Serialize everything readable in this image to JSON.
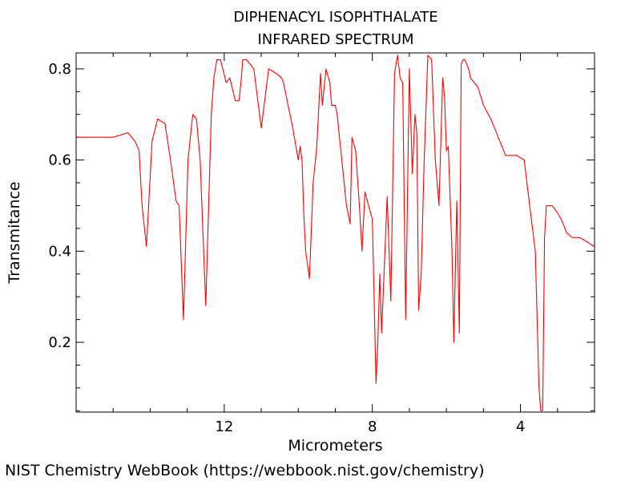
{
  "chart_data": {
    "type": "line",
    "title": "DIPHENACYL ISOPHTHALATE",
    "subtitle": "INFRARED SPECTRUM",
    "xlabel": "Micrometers",
    "ylabel": "Transmitance",
    "xlim": [
      16.0,
      2.0
    ],
    "ylim": [
      0.047,
      0.835
    ],
    "x_direction": "reversed",
    "xticks": [
      12,
      8,
      4
    ],
    "xtick_labels": [
      "12",
      "8",
      "4"
    ],
    "yticks": [
      0.2,
      0.4,
      0.6,
      0.8
    ],
    "ytick_labels": [
      "0.2",
      "0.4",
      "0.6",
      "0.8"
    ],
    "grid": false,
    "series": [
      {
        "color": "#ff0000",
        "x": [
          16.0,
          15.5,
          15.0,
          14.6,
          14.4,
          14.3,
          14.22,
          14.1,
          13.95,
          13.8,
          13.6,
          13.45,
          13.3,
          13.22,
          13.1,
          12.98,
          12.85,
          12.75,
          12.65,
          12.5,
          12.35,
          12.28,
          12.2,
          12.1,
          11.95,
          11.85,
          11.7,
          11.6,
          11.55,
          11.5,
          11.4,
          11.2,
          11.0,
          10.8,
          10.6,
          10.45,
          10.4,
          10.3,
          10.15,
          10.0,
          9.95,
          9.9,
          9.85,
          9.8,
          9.7,
          9.6,
          9.5,
          9.4,
          9.35,
          9.25,
          9.15,
          9.1,
          9.05,
          9.0,
          8.95,
          8.85,
          8.7,
          8.6,
          8.55,
          8.45,
          8.35,
          8.28,
          8.2,
          8.1,
          8.0,
          7.9,
          7.85,
          7.8,
          7.75,
          7.7,
          7.6,
          7.5,
          7.4,
          7.32,
          7.25,
          7.18,
          7.1,
          7.0,
          6.92,
          6.85,
          6.8,
          6.75,
          6.68,
          6.6,
          6.5,
          6.4,
          6.3,
          6.2,
          6.1,
          6.05,
          6.0,
          5.95,
          5.85,
          5.8,
          5.72,
          5.65,
          5.6,
          5.55,
          5.5,
          5.4,
          5.35,
          5.25,
          5.15,
          5.0,
          4.8,
          4.6,
          4.4,
          4.1,
          3.9,
          3.75,
          3.6,
          3.5,
          3.45,
          3.4,
          3.35,
          3.3,
          3.22,
          3.15,
          3.05,
          2.9,
          2.75,
          2.6,
          2.4,
          2.2,
          2.0
        ],
        "y": [
          0.65,
          0.65,
          0.65,
          0.66,
          0.64,
          0.62,
          0.5,
          0.41,
          0.64,
          0.69,
          0.68,
          0.6,
          0.51,
          0.5,
          0.25,
          0.6,
          0.7,
          0.69,
          0.6,
          0.28,
          0.7,
          0.78,
          0.82,
          0.82,
          0.77,
          0.78,
          0.73,
          0.73,
          0.77,
          0.82,
          0.82,
          0.8,
          0.67,
          0.8,
          0.79,
          0.78,
          0.77,
          0.73,
          0.67,
          0.6,
          0.63,
          0.6,
          0.48,
          0.4,
          0.34,
          0.55,
          0.63,
          0.79,
          0.72,
          0.8,
          0.77,
          0.72,
          0.72,
          0.72,
          0.7,
          0.62,
          0.5,
          0.46,
          0.65,
          0.62,
          0.5,
          0.4,
          0.53,
          0.5,
          0.47,
          0.11,
          0.2,
          0.35,
          0.22,
          0.32,
          0.52,
          0.29,
          0.79,
          0.83,
          0.78,
          0.77,
          0.25,
          0.8,
          0.57,
          0.7,
          0.66,
          0.27,
          0.35,
          0.6,
          0.83,
          0.82,
          0.6,
          0.5,
          0.78,
          0.74,
          0.62,
          0.63,
          0.4,
          0.2,
          0.51,
          0.22,
          0.81,
          0.82,
          0.82,
          0.8,
          0.78,
          0.77,
          0.76,
          0.72,
          0.69,
          0.65,
          0.61,
          0.61,
          0.6,
          0.5,
          0.4,
          0.1,
          0.05,
          0.05,
          0.43,
          0.5,
          0.5,
          0.5,
          0.49,
          0.47,
          0.44,
          0.43,
          0.43,
          0.42,
          0.41
        ]
      }
    ]
  },
  "footer": {
    "credit": "NIST Chemistry WebBook (https://webbook.nist.gov/chemistry)"
  }
}
